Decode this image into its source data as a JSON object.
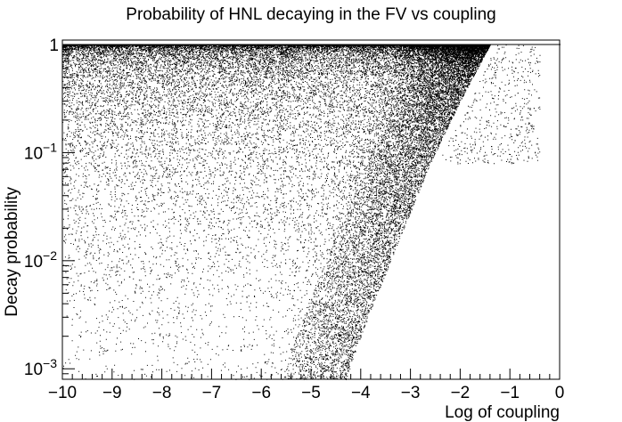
{
  "chart_data": {
    "type": "scatter",
    "title": "Probability of HNL decaying in the FV vs coupling",
    "xlabel": "Log of coupling",
    "ylabel": "Decay probability",
    "xlim": [
      -10,
      0
    ],
    "ylim": [
      0.0008,
      1.1
    ],
    "y_scale": "log",
    "grid": false,
    "legend": "none",
    "marker_color": "#000000",
    "x_ticks": [
      {
        "value": -10,
        "label": "−10"
      },
      {
        "value": -9,
        "label": "−9"
      },
      {
        "value": -8,
        "label": "−8"
      },
      {
        "value": -7,
        "label": "−7"
      },
      {
        "value": -6,
        "label": "−6"
      },
      {
        "value": -5,
        "label": "−5"
      },
      {
        "value": -4,
        "label": "−4"
      },
      {
        "value": -3,
        "label": "−3"
      },
      {
        "value": -2,
        "label": "−2"
      },
      {
        "value": -1,
        "label": "−1"
      },
      {
        "value": 0,
        "label": "0"
      }
    ],
    "y_ticks": [
      {
        "value": 0.001,
        "base": "10",
        "exp": "−3"
      },
      {
        "value": 0.01,
        "base": "10",
        "exp": "−2"
      },
      {
        "value": 0.1,
        "base": "10",
        "exp": "−1"
      },
      {
        "value": 1,
        "base": "1",
        "exp": ""
      }
    ],
    "density_profile": {
      "description_points": [
        {
          "x": -10,
          "y_upper": 1.0
        },
        {
          "x": -2.1,
          "y_upper": 1.0
        },
        {
          "x": -2.5,
          "y_upper": 0.3
        },
        {
          "x": -3.2,
          "y_upper": 0.05
        },
        {
          "x": -4.2,
          "y_upper": 0.005
        },
        {
          "x": -5.0,
          "y_upper": 0.0008
        }
      ],
      "saturation_edge": [
        {
          "x": -1.4,
          "y": 1.0
        },
        {
          "x": -2.0,
          "y": 0.3
        },
        {
          "x": -2.6,
          "y": 0.08
        },
        {
          "x": -3.4,
          "y": 0.01
        },
        {
          "x": -4.0,
          "y": 0.002
        },
        {
          "x": -4.3,
          "y": 0.0008
        }
      ]
    }
  }
}
